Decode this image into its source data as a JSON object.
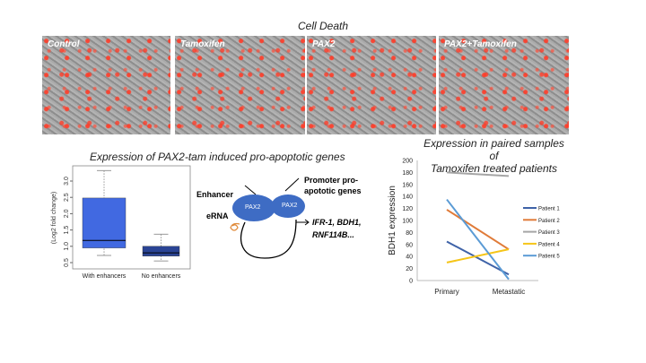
{
  "title": "Cell Death",
  "panels": [
    "Control",
    "Tamoxifen",
    "PAX2",
    "PAX2+Tamoxifen"
  ],
  "boxplot_title": "Expression of PAX2-tam induced pro-apoptotic genes",
  "diagram": {
    "enhancer": "Enhancer",
    "erna": "eRNA",
    "pax2": "PAX2",
    "promoter": "Promoter pro-",
    "promoter2": "apototic genes",
    "genes1": "IFR-1, BDH1,",
    "genes2": "RNF114B..."
  },
  "line_title1": "Expression in paired samples of",
  "line_title2": "Tamoxifen treated patients",
  "chart_data": [
    {
      "type": "box",
      "ylabel": "(Log2 fold change)",
      "ylim": [
        0.5,
        3.3
      ],
      "yticks": [
        0.5,
        1.0,
        1.5,
        2.0,
        2.5,
        3.0
      ],
      "categories": [
        "With enhancers",
        "No enhancers"
      ],
      "boxes": [
        {
          "min": 0.72,
          "q1": 0.95,
          "median": 1.18,
          "q3": 2.48,
          "max": 3.32,
          "color": "#4169e1"
        },
        {
          "min": 0.55,
          "q1": 0.7,
          "median": 0.8,
          "q3": 1.0,
          "max": 1.37,
          "color": "#2a4494"
        }
      ]
    },
    {
      "type": "line",
      "ylabel": "BDH1 expression",
      "ylim": [
        0,
        200
      ],
      "yticks": [
        0,
        20,
        40,
        60,
        80,
        100,
        120,
        140,
        160,
        180,
        200
      ],
      "categories": [
        "Primary",
        "Metastatic"
      ],
      "legend": "right",
      "series": [
        {
          "name": "Patient 1",
          "values": [
            65,
            10
          ],
          "color": "#3f63a8"
        },
        {
          "name": "Patient 2",
          "values": [
            118,
            52
          ],
          "color": "#e07b39"
        },
        {
          "name": "Patient 3",
          "values": [
            180,
            174
          ],
          "color": "#a5a5a5"
        },
        {
          "name": "Patient 4",
          "values": [
            30,
            52
          ],
          "color": "#f5c518"
        },
        {
          "name": "Patient 5",
          "values": [
            135,
            2
          ],
          "color": "#5b9bd5"
        }
      ]
    }
  ]
}
